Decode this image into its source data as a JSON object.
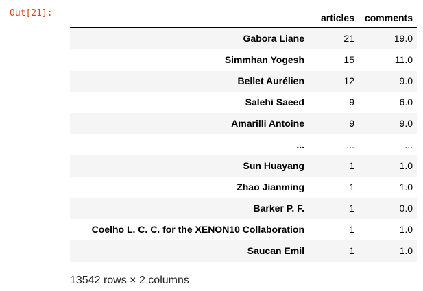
{
  "cell": {
    "prompt": "Out[21]:"
  },
  "dataframe": {
    "columns": [
      "articles",
      "comments"
    ],
    "rows": [
      {
        "index": "Gabora Liane",
        "articles": "21",
        "comments": "19.0"
      },
      {
        "index": "Simmhan Yogesh",
        "articles": "15",
        "comments": "11.0"
      },
      {
        "index": "Bellet Aurélien",
        "articles": "12",
        "comments": "9.0"
      },
      {
        "index": "Salehi Saeed",
        "articles": "9",
        "comments": "6.0"
      },
      {
        "index": "Amarilli Antoine",
        "articles": "9",
        "comments": "9.0"
      },
      {
        "index": "...",
        "articles": "...",
        "comments": "..."
      },
      {
        "index": "Sun Huayang",
        "articles": "1",
        "comments": "1.0"
      },
      {
        "index": "Zhao Jianming",
        "articles": "1",
        "comments": "1.0"
      },
      {
        "index": "Barker P. F.",
        "articles": "1",
        "comments": "0.0"
      },
      {
        "index": "Coelho L. C. C. for the XENON10 Collaboration",
        "articles": "1",
        "comments": "1.0"
      },
      {
        "index": "Saucan Emil",
        "articles": "1",
        "comments": "1.0"
      }
    ],
    "shape_text": "13542 rows × 2 columns"
  },
  "colors": {
    "prompt": "#d84315",
    "stripe": "#f5f5f5"
  }
}
